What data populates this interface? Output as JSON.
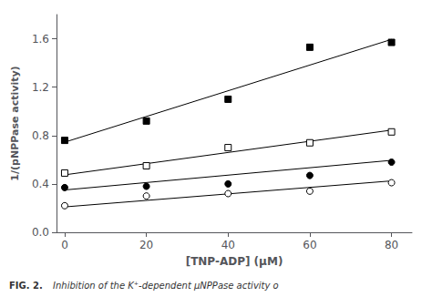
{
  "chart_data": {
    "type": "scatter",
    "x": [
      0,
      20,
      40,
      60,
      80
    ],
    "series": [
      {
        "type": "scatter",
        "marker": "filled_square",
        "color": "#000000",
        "values": [
          0.76,
          0.92,
          1.1,
          1.53,
          1.57
        ]
      },
      {
        "type": "scatter",
        "marker": "open_square",
        "color": "#000000",
        "values": [
          0.49,
          0.55,
          0.7,
          0.74,
          0.83
        ]
      },
      {
        "type": "scatter",
        "marker": "filled_circle",
        "color": "#000000",
        "values": [
          0.37,
          0.38,
          0.4,
          0.47,
          0.58
        ]
      },
      {
        "type": "scatter",
        "marker": "open_circle",
        "color": "#000000",
        "values": [
          0.22,
          0.3,
          0.32,
          0.34,
          0.41
        ]
      },
      {
        "type": "line",
        "line_style": "solid",
        "color": "#000000",
        "x": [
          0,
          80
        ],
        "values": [
          0.745,
          1.595
        ]
      },
      {
        "type": "line",
        "line_style": "solid",
        "color": "#000000",
        "x": [
          0,
          80
        ],
        "values": [
          0.475,
          0.845
        ]
      },
      {
        "type": "line",
        "line_style": "solid",
        "color": "#000000",
        "x": [
          0,
          80
        ],
        "values": [
          0.35,
          0.595
        ]
      },
      {
        "type": "line",
        "line_style": "solid",
        "color": "#000000",
        "x": [
          0,
          80
        ],
        "values": [
          0.21,
          0.425
        ]
      }
    ],
    "xlabel": "[TNP-ADP] (μM)",
    "ylabel": "1/(pNPPase activity)",
    "xlim": [
      -2,
      85
    ],
    "ylim": [
      0.0,
      1.8
    ],
    "xticks": [
      0,
      20,
      40,
      60,
      80
    ],
    "yticks": [
      {
        "value": 0,
        "label": "0.0"
      },
      0.4,
      0.8,
      1.2,
      1.6
    ],
    "grid": false,
    "annotations": [
      "FIG. 2.",
      "Inhibition of the K⁺-dependent μNPPase activity o"
    ]
  }
}
